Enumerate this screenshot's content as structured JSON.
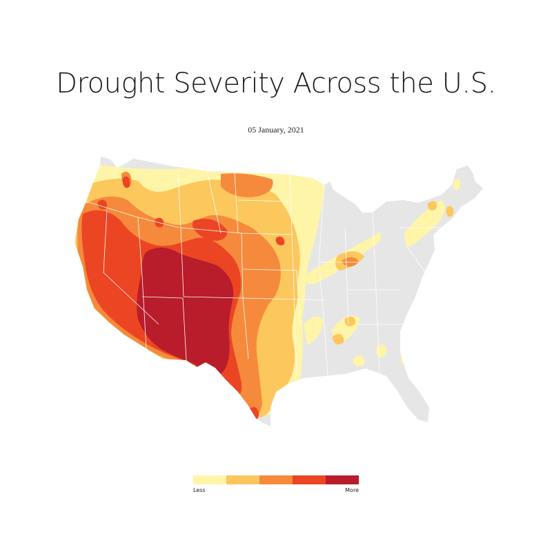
{
  "title": "Drought Severity Across the U.S.",
  "date": "05 January, 2021",
  "colors": {
    "land": "#e6e6e6",
    "border": "#ffffff",
    "d0": "#fff5a8",
    "d1": "#fcc75c",
    "d2": "#f68a3c",
    "d3": "#ec4523",
    "d4": "#b91c2a"
  },
  "legend": {
    "scale": [
      "#fff5a8",
      "#fcc75c",
      "#f68a3c",
      "#ec4523",
      "#b91c2a"
    ],
    "low_label": "Less",
    "high_label": "More"
  }
}
